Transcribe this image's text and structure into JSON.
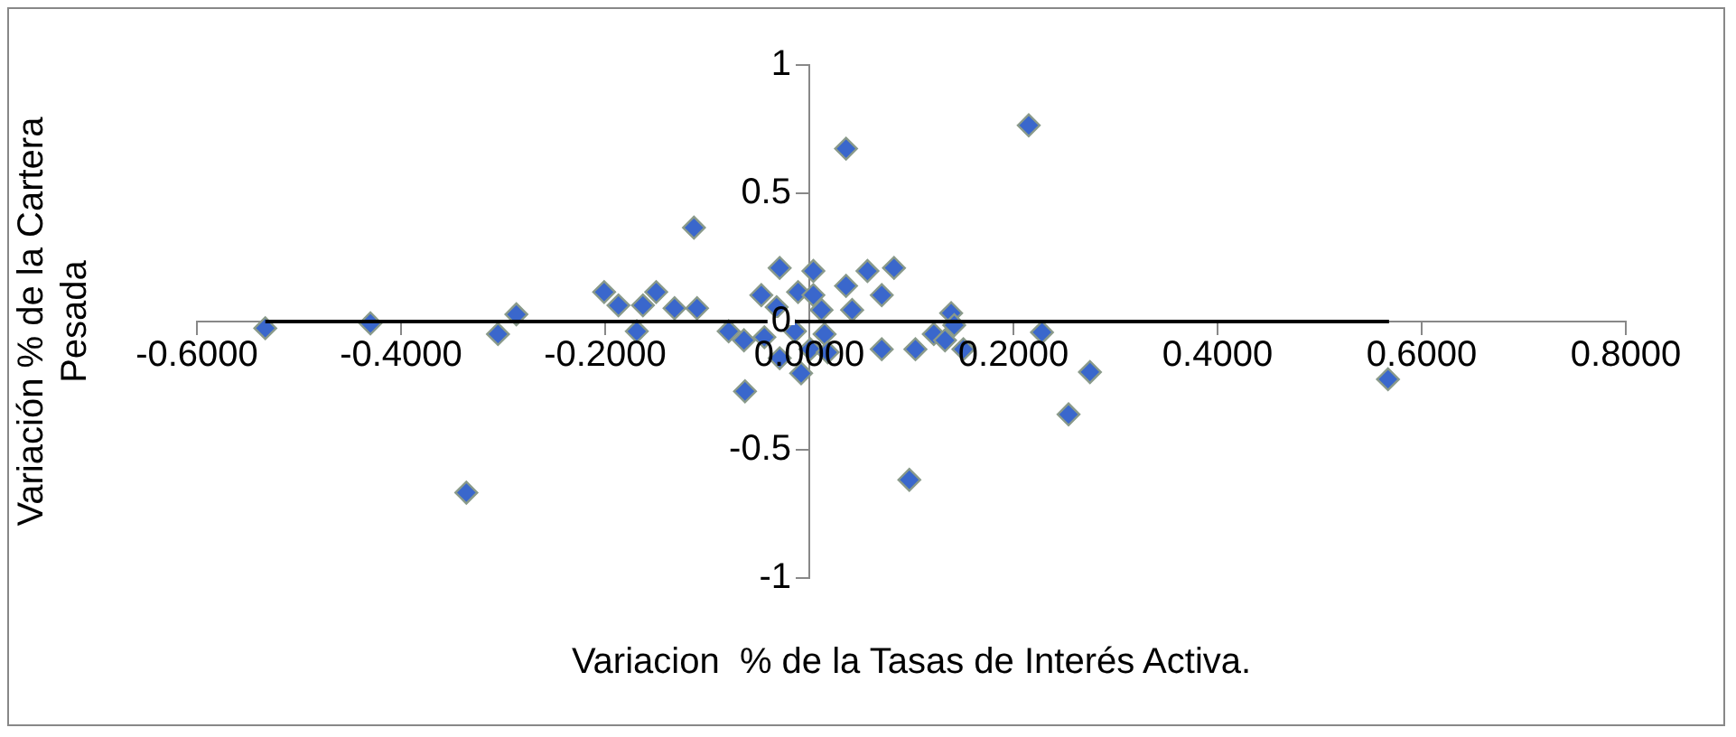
{
  "chart_data": {
    "type": "scatter",
    "xlabel": "Variacion  % de la Tasas de Interés Activa.",
    "ylabel": "Variación % de la Cartera Pesada",
    "xlim": [
      -0.6,
      0.8
    ],
    "ylim": [
      -1,
      1
    ],
    "xticks": [
      {
        "value": -0.6,
        "label": "-0.6000"
      },
      {
        "value": -0.4,
        "label": "-0.4000"
      },
      {
        "value": -0.2,
        "label": "-0.2000"
      },
      {
        "value": 0,
        "label": "0.0000"
      },
      {
        "value": 0.2,
        "label": "0.2000"
      },
      {
        "value": 0.4,
        "label": "0.4000"
      },
      {
        "value": 0.6,
        "label": "0.6000"
      },
      {
        "value": 0.8,
        "label": "0.8000"
      }
    ],
    "yticks": [
      -1,
      -0.5,
      0,
      0.5,
      1
    ],
    "marker": "diamond",
    "series": [
      {
        "color": "#3a67cc",
        "x": [
          -0.533,
          -0.43,
          -0.336,
          -0.305,
          -0.287,
          -0.201,
          -0.187,
          -0.169,
          -0.163,
          -0.15,
          -0.132,
          -0.113,
          -0.11,
          -0.079,
          -0.064,
          -0.063,
          -0.047,
          -0.029,
          -0.032,
          -0.044,
          -0.029,
          -0.014,
          -0.008,
          -0.011,
          0.004,
          0.004,
          0.012,
          0.015,
          0.001,
          0.018,
          0.036,
          0.042,
          0.057,
          0.071,
          0.071,
          0.083,
          0.104,
          0.122,
          0.139,
          0.133,
          0.151,
          0.142,
          0.036,
          0.215,
          0.098,
          0.228,
          0.275,
          0.254,
          0.567
        ],
        "values": [
          -0.026,
          -0.007,
          -0.667,
          -0.049,
          0.028,
          0.115,
          0.063,
          -0.038,
          0.063,
          0.115,
          0.052,
          0.366,
          0.052,
          -0.038,
          -0.073,
          -0.272,
          0.103,
          0.209,
          0.056,
          -0.061,
          -0.143,
          -0.038,
          -0.202,
          0.115,
          0.197,
          0.103,
          0.045,
          -0.049,
          -0.108,
          -0.12,
          0.139,
          0.045,
          0.197,
          0.103,
          -0.108,
          0.209,
          -0.108,
          -0.049,
          0.033,
          -0.073,
          -0.108,
          -0.014,
          0.674,
          0.765,
          -0.617,
          -0.042,
          -0.197,
          -0.362,
          -0.225
        ]
      },
      {
        "type": "line",
        "color": "#000000",
        "marker": "none",
        "x": [
          -0.533,
          0.568
        ],
        "values": [
          0,
          0
        ]
      }
    ]
  }
}
